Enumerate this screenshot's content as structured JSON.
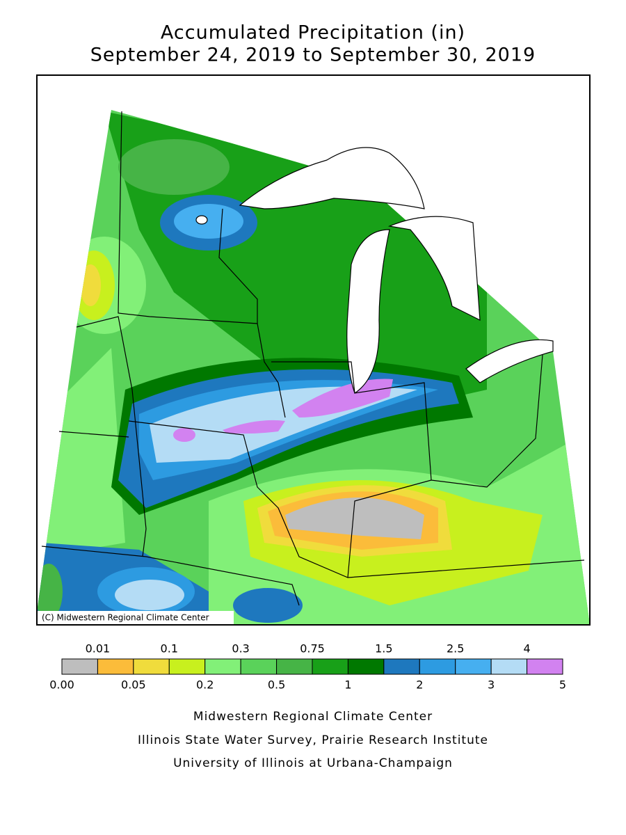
{
  "title": {
    "line1": "Accumulated Precipitation (in)",
    "line2": "September 24, 2019 to September 30, 2019"
  },
  "map": {
    "copyright": "(C) Midwestern Regional Climate Center"
  },
  "legend": {
    "colors": [
      "#bebebe",
      "#fbbc3a",
      "#f0dc3c",
      "#c8f01e",
      "#82f078",
      "#5ad25a",
      "#46b446",
      "#18a018",
      "#007800",
      "#1e78be",
      "#2d9be1",
      "#46aff0",
      "#b4dcf5",
      "#d282f0"
    ],
    "upper_labels": [
      "0.01",
      "0.1",
      "0.3",
      "0.75",
      "1.5",
      "2.5",
      "4"
    ],
    "lower_labels": [
      "0.00",
      "0.05",
      "0.2",
      "0.5",
      "1",
      "2",
      "3",
      "5"
    ]
  },
  "credits": [
    "Midwestern Regional Climate Center",
    "Illinois State Water Survey, Prairie Research Institute",
    "University of Illinois at Urbana-Champaign"
  ]
}
